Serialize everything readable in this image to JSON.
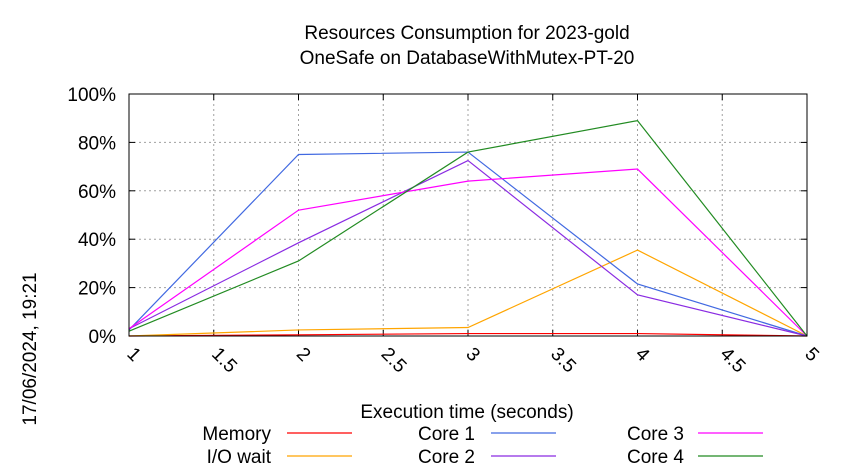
{
  "chart_data": {
    "type": "line",
    "title": "Resources Consumption for 2023-gold",
    "subtitle": "OneSafe on DatabaseWithMutex-PT-20",
    "xlabel": "Execution time (seconds)",
    "ylabel": "",
    "x": [
      1,
      2,
      3,
      4,
      5
    ],
    "xlim": [
      1,
      5
    ],
    "ylim": [
      0,
      100
    ],
    "x_ticks": [
      "1",
      "1.5",
      "2",
      "2.5",
      "3",
      "3.5",
      "4",
      "4.5",
      "5"
    ],
    "x_tick_values": [
      1,
      1.5,
      2,
      2.5,
      3,
      3.5,
      4,
      4.5,
      5
    ],
    "y_ticks": [
      "0%",
      "20%",
      "40%",
      "60%",
      "80%",
      "100%"
    ],
    "y_tick_values": [
      0,
      20,
      40,
      60,
      80,
      100
    ],
    "grid": true,
    "legend_position": "bottom",
    "series": [
      {
        "name": "Memory",
        "color": "#ff0000",
        "values": [
          0,
          0.5,
          1,
          1,
          0
        ]
      },
      {
        "name": "I/O wait",
        "color": "#ffa500",
        "values": [
          0,
          2.5,
          3.5,
          35.5,
          0
        ]
      },
      {
        "name": "Core 1",
        "color": "#4169e1",
        "values": [
          2.5,
          75,
          76,
          21.5,
          0
        ]
      },
      {
        "name": "Core 2",
        "color": "#8a2be2",
        "values": [
          3,
          38.5,
          72.5,
          17,
          0
        ]
      },
      {
        "name": "Core 3",
        "color": "#ff00ff",
        "values": [
          3,
          52,
          64,
          69,
          0
        ]
      },
      {
        "name": "Core 4",
        "color": "#228b22",
        "values": [
          2,
          31,
          76,
          89,
          0
        ]
      }
    ]
  },
  "timestamp": "17/06/2024, 19:21"
}
